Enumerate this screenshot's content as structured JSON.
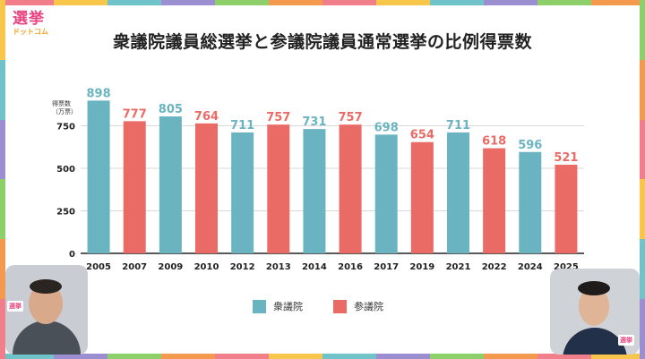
{
  "logo": {
    "main": "選挙",
    "sub": "ドットコム"
  },
  "title": "衆議院議員総選挙と参議院議員通常選挙の比例得票数",
  "colors": {
    "shugiin": "#6ab4c2",
    "sangiin": "#ea6a66",
    "grid": "#d9d9d9",
    "axis": "#222222"
  },
  "legend": {
    "shugiin": "衆議院",
    "sangiin": "参議院"
  },
  "chart_data": {
    "type": "bar",
    "title": "衆議院議員総選挙と参議院議員通常選挙の比例得票数",
    "ylabel_line1": "得票数",
    "ylabel_line2": "（万票）",
    "ylim": [
      0,
      900
    ],
    "yticks": [
      0,
      250,
      500,
      750
    ],
    "grid": true,
    "categories": [
      "2005",
      "2007",
      "2009",
      "2010",
      "2012",
      "2013",
      "2014",
      "2016",
      "2017",
      "2019",
      "2021",
      "2022",
      "2024",
      "2025"
    ],
    "values": [
      898,
      777,
      805,
      764,
      711,
      757,
      731,
      757,
      698,
      654,
      711,
      618,
      596,
      521
    ],
    "house": [
      "衆議院",
      "参議院",
      "衆議院",
      "参議院",
      "衆議院",
      "参議院",
      "衆議院",
      "参議院",
      "衆議院",
      "参議院",
      "衆議院",
      "参議院",
      "衆議院",
      "参議院"
    ]
  },
  "webcams": {
    "left_badge": "選挙",
    "right_badge": "選挙"
  }
}
